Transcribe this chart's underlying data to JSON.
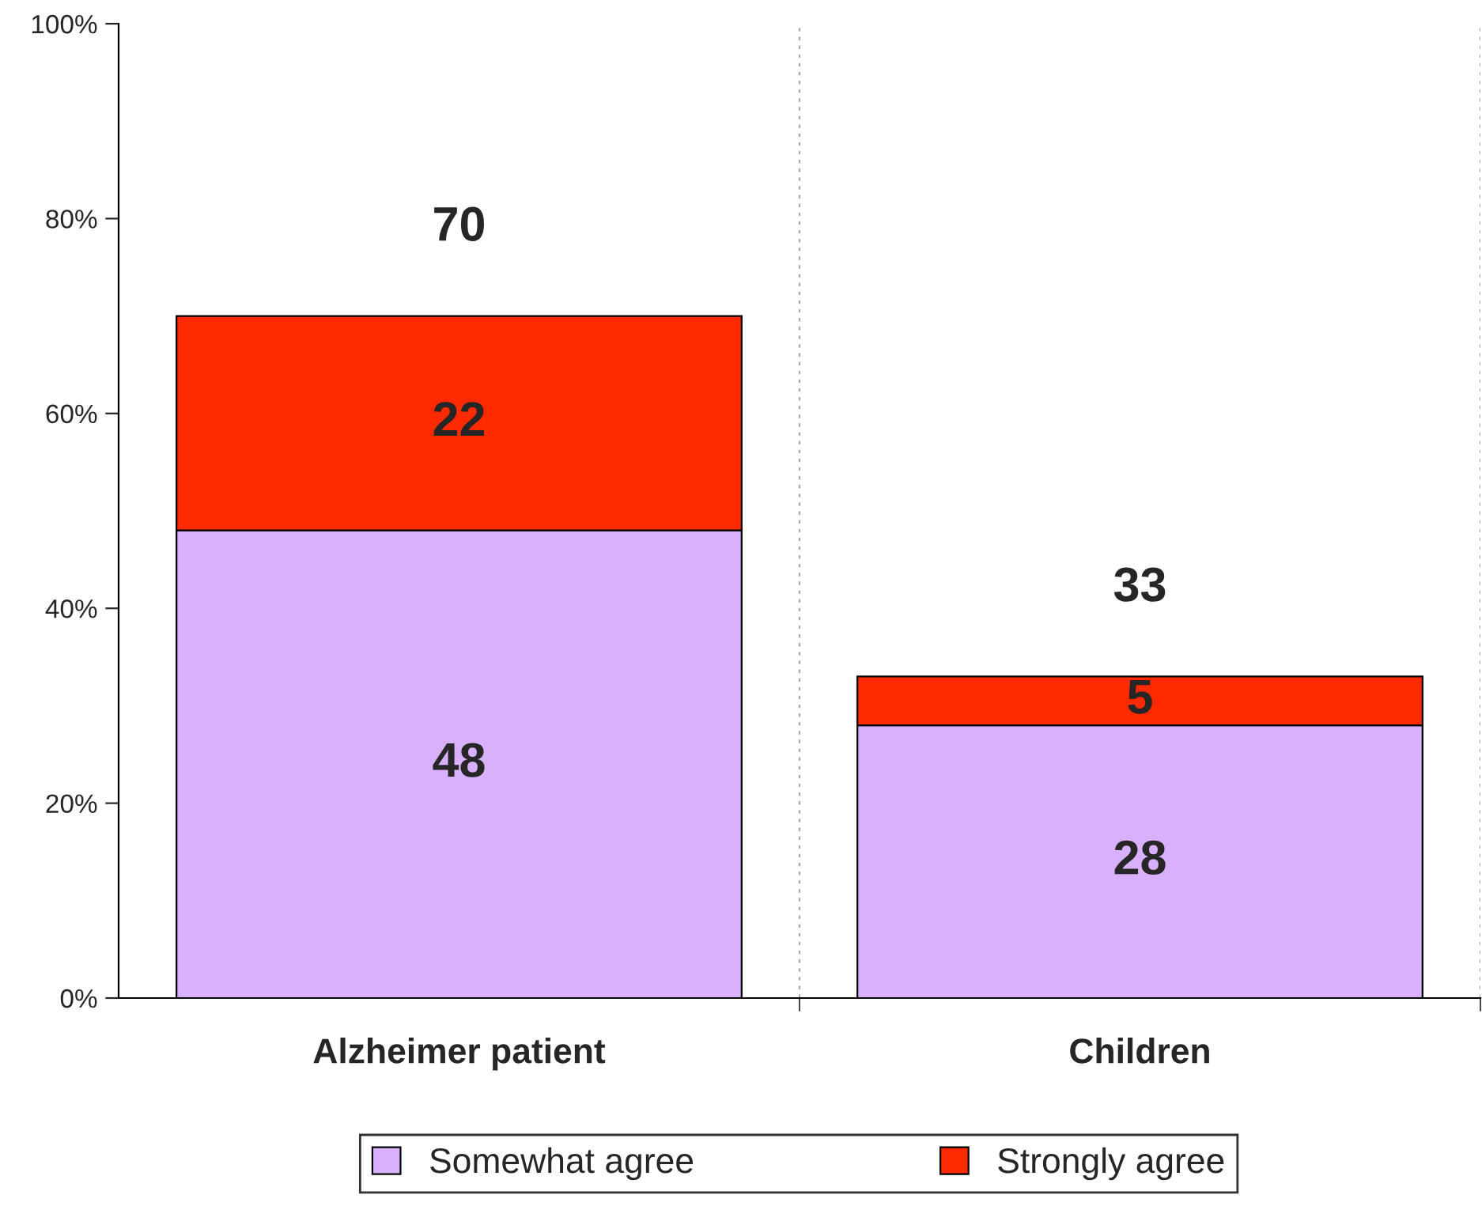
{
  "chart_data": {
    "type": "bar",
    "stacked": true,
    "categories": [
      "Alzheimer patient",
      "Children"
    ],
    "series": [
      {
        "name": "Somewhat agree",
        "color": "#d8b0fc",
        "values": [
          48,
          28
        ]
      },
      {
        "name": "Strongly agree",
        "color": "#ff2a00",
        "values": [
          22,
          5
        ]
      }
    ],
    "data_labels": true,
    "totals": [
      "70",
      "33"
    ],
    "ylim": [
      0,
      100
    ],
    "yticks": [
      {
        "value": 0,
        "label": "0%"
      },
      {
        "value": 20,
        "label": "20%"
      },
      {
        "value": 40,
        "label": "40%"
      },
      {
        "value": 60,
        "label": "60%"
      },
      {
        "value": 80,
        "label": "80%"
      },
      {
        "value": 100,
        "label": "100%"
      }
    ],
    "grid": "x",
    "legend": "bottom"
  }
}
